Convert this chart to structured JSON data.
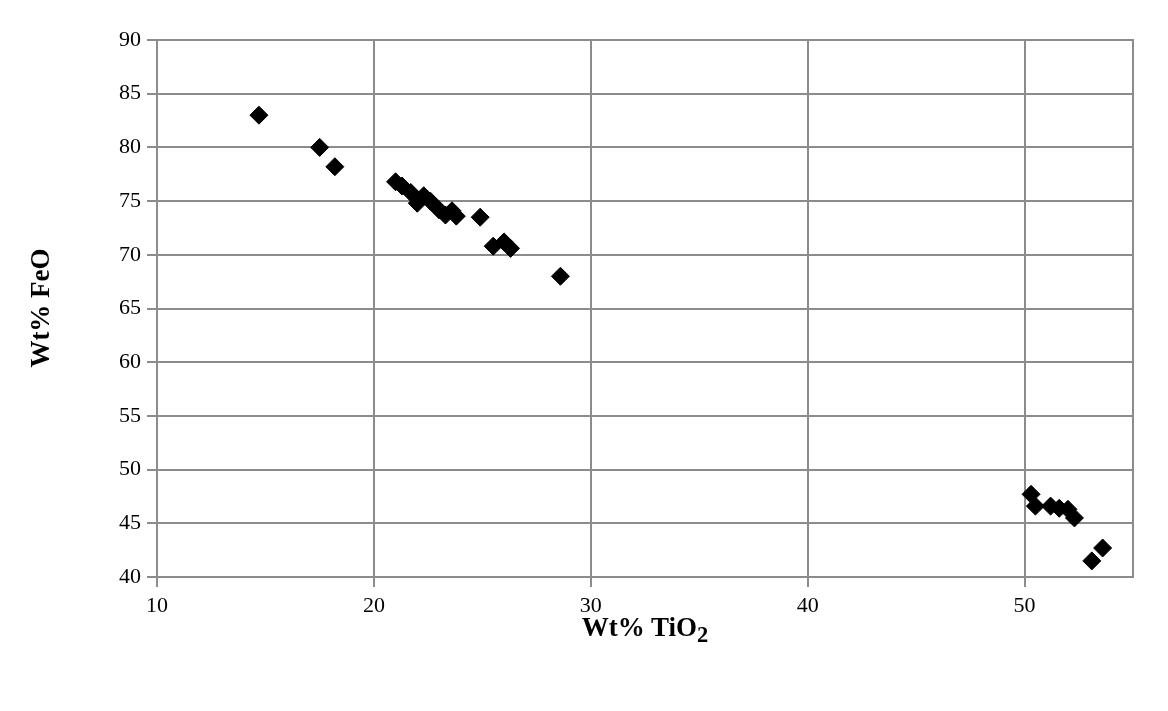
{
  "chart_data": {
    "type": "scatter",
    "xlabel": "Wt% TiO$_{2}$",
    "ylabel": "Wt% FeO",
    "xlim": [
      10,
      55
    ],
    "xticks": [
      10,
      20,
      30,
      40,
      50
    ],
    "ylim": [
      40,
      90
    ],
    "yticks": [
      40,
      45,
      50,
      55,
      60,
      65,
      70,
      75,
      80,
      85,
      90
    ],
    "grid": true,
    "legend": false,
    "marker": "diamond",
    "series": [
      {
        "color": "#000000",
        "x": [
          14.7,
          17.5,
          18.2,
          21,
          21.3,
          21.7,
          22,
          22.3,
          22.6,
          23,
          23.3,
          23.6,
          23.8,
          24.9,
          25.5,
          26,
          26.3,
          28.6,
          50.3,
          50.5,
          51.2,
          51.6,
          52,
          52.3,
          53.1,
          53.6
        ],
        "values": [
          83,
          80,
          78.2,
          76.8,
          76.4,
          75.8,
          74.8,
          75.5,
          75,
          74.2,
          73.7,
          74.1,
          73.6,
          73.5,
          70.8,
          71.2,
          70.6,
          68,
          47.7,
          46.6,
          46.6,
          46.4,
          46.3,
          45.5,
          41.5,
          42.7
        ]
      }
    ]
  }
}
